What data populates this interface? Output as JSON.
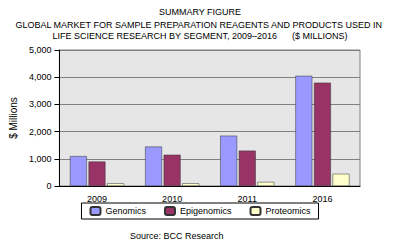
{
  "chart_data": {
    "type": "bar",
    "title": "SUMMARY FIGURE",
    "subtitle": "GLOBAL MARKET FOR SAMPLE PREPARATION REAGENTS AND PRODUCTS USED IN LIFE SCIENCE RESEARCH BY SEGMENT, 2009–2016      ($ MILLIONS)",
    "ylabel": "$ Millions",
    "annotations": [
      "Source: BCC Research"
    ],
    "categories": [
      "2009",
      "2010",
      "2011",
      "2016"
    ],
    "series": [
      {
        "name": "Genomics",
        "color": "#9999ff",
        "values": [
          1100,
          1450,
          1850,
          4050
        ]
      },
      {
        "name": "Epigenomics",
        "color": "#993366",
        "values": [
          900,
          1150,
          1300,
          3800
        ]
      },
      {
        "name": "Proteomics",
        "color": "#ffffcc",
        "values": [
          100,
          100,
          150,
          450
        ]
      }
    ],
    "ylim": [
      0,
      5000
    ],
    "yticks": [
      0,
      {
        "value": 1000,
        "label": "1,000"
      },
      {
        "value": 2000,
        "label": "2,000"
      },
      {
        "value": 3000,
        "label": "3,000"
      },
      {
        "value": 4000,
        "label": "4,000"
      },
      {
        "value": 5000,
        "label": "5,000"
      }
    ],
    "grid": true,
    "legend": "bottom"
  }
}
